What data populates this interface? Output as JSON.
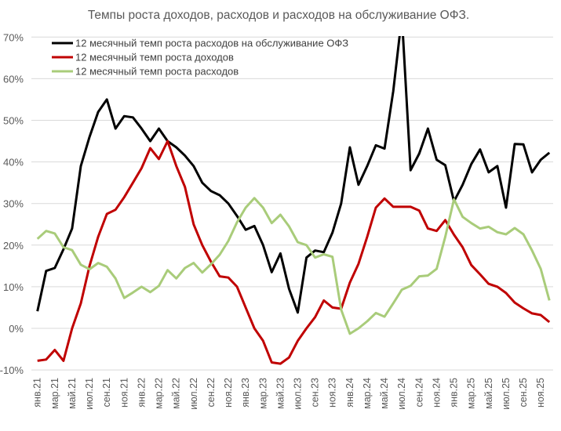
{
  "chart_data": {
    "type": "line",
    "title": "Темпы роста доходов, расходов и расходов на обслуживание ОФЗ.",
    "xlabel": "",
    "ylabel": "",
    "ylim": [
      -10,
      70
    ],
    "yticks": [
      "70%",
      "60%",
      "50%",
      "40%",
      "30%",
      "20%",
      "10%",
      "0%",
      "-10%"
    ],
    "ytick_values": [
      70,
      60,
      50,
      40,
      30,
      20,
      10,
      0,
      -10
    ],
    "grid": true,
    "legend_position": "top-left",
    "x_tick_labels": [
      "янв.21",
      "мар.21",
      "май.21",
      "июл.21",
      "сен.21",
      "ноя.21",
      "янв.22",
      "мар.22",
      "май.22",
      "июл.22",
      "сен.22",
      "ноя.22",
      "янв.23",
      "мар.23",
      "май.23",
      "июл.23",
      "сен.23",
      "ноя.23",
      "янв.24",
      "мар.24",
      "май.24",
      "июл.24",
      "сен.24",
      "ноя.24",
      "янв.25",
      "мар.25",
      "май.25",
      "июл.25",
      "сен.25",
      "ноя.25"
    ],
    "x_period": "monthly, янв.21 – дек.25",
    "series": [
      {
        "name": "12 месячный темп роста расходов на обслуживание ОФЗ",
        "color": "#000000",
        "values": [
          4.1,
          13.8,
          14.5,
          19,
          24,
          39,
          46,
          52,
          55,
          48,
          51,
          50.7,
          48,
          45,
          48,
          45,
          43.5,
          41.5,
          39,
          35,
          33,
          32,
          30,
          27,
          23.7,
          24.6,
          20,
          13.5,
          18,
          9.5,
          3.8,
          17,
          18.7,
          18.3,
          23,
          30,
          43.5,
          34.5,
          39,
          44,
          43.2,
          57,
          75,
          38,
          42,
          48,
          40.5,
          39.2,
          30.5,
          34.5,
          39.5,
          43,
          37.5,
          39,
          29,
          44.3,
          44.2,
          37.5,
          40.5,
          42.2
        ]
      },
      {
        "name": "12 месячный темп роста доходов",
        "color": "#c00000",
        "values": [
          -7.8,
          -7.5,
          -5.2,
          -7.8,
          0,
          6,
          15,
          22,
          27.5,
          28.5,
          31.5,
          35,
          38.5,
          43.3,
          40.7,
          45,
          39,
          34,
          25,
          20,
          16,
          12.5,
          12.2,
          10,
          5,
          0,
          -3,
          -8.2,
          -8.5,
          -7,
          -3,
          0,
          2.7,
          6.7,
          5,
          4.7,
          11,
          15.5,
          22,
          29,
          31.2,
          29.2,
          29.2,
          29.2,
          28.3,
          24,
          23.4,
          26,
          22.5,
          19.5,
          15.2,
          13,
          10.7,
          10,
          8.5,
          6.2,
          4.8,
          3.6,
          3.2,
          1.5
        ]
      },
      {
        "name": "12 месячный темп роста расходов",
        "color": "#a9cc7a",
        "values": [
          21.5,
          23.4,
          22.8,
          19.5,
          18.8,
          15.3,
          14.2,
          15.7,
          14.8,
          12,
          7.3,
          8.6,
          10,
          8.7,
          10.2,
          14,
          12,
          14.5,
          15.7,
          13.4,
          15.4,
          17.7,
          21,
          25.5,
          29,
          31.3,
          29,
          25.3,
          27.3,
          24.5,
          20.7,
          20,
          17,
          17.8,
          17.2,
          4.5,
          -1.3,
          0,
          1.7,
          3.7,
          2.8,
          6,
          9.3,
          10.2,
          12.5,
          12.7,
          14.3,
          22,
          31,
          26.8,
          25.3,
          24,
          24.4,
          23.1,
          22.6,
          24.1,
          22.6,
          18.7,
          14.3,
          6.7
        ]
      }
    ]
  }
}
